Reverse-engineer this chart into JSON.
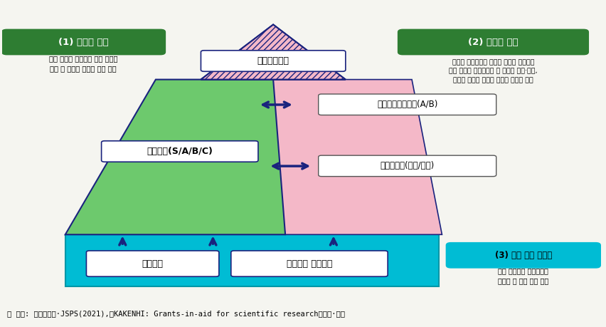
{
  "bg_color": "#f5f5f0",
  "title_box1": "(1) 과학적 연구",
  "title_box2": "(2) 변혁적 연구",
  "title_box3": "(3) 초기 경력 과학자",
  "desc1": "과거 축적을 기반으로 학문 분야의\n심화 및 발전을 목표로 연구 지원",
  "desc2": "혁신적 아이디어에 기반한 연구를 지원하고\n기존 과학적 프레임워크 및 방향의 변환·전환,\n새로운 영역의 개발을 주도할 잠재력 보유",
  "desc3": "초기 연구자가 독자적으로\n연구할 수 있는 기회 제공",
  "label_top": "특별추진연구",
  "label_mid": "기반연구(S/A/B/C)",
  "label_right1": "학술변혁영역연구(A/B)",
  "label_right2": "도전적연구(개척/맹아)",
  "label_base1": "신진연구",
  "label_base2": "연구활동 스타트업",
  "footer": "※ 출처: 문부과학성·JSPS(2021),「KAKENHI: Grants-in-aid for scientific research」수정·보완",
  "green_color": "#5cb85c",
  "dark_green": "#4a9a4a",
  "pink_color": "#f4b8c8",
  "blue_color": "#00bcd4",
  "dark_blue": "#1a237e",
  "arrow_color": "#1a237e",
  "green_label_bg": "#2e7d32",
  "cyan_label_bg": "#00bcd4"
}
